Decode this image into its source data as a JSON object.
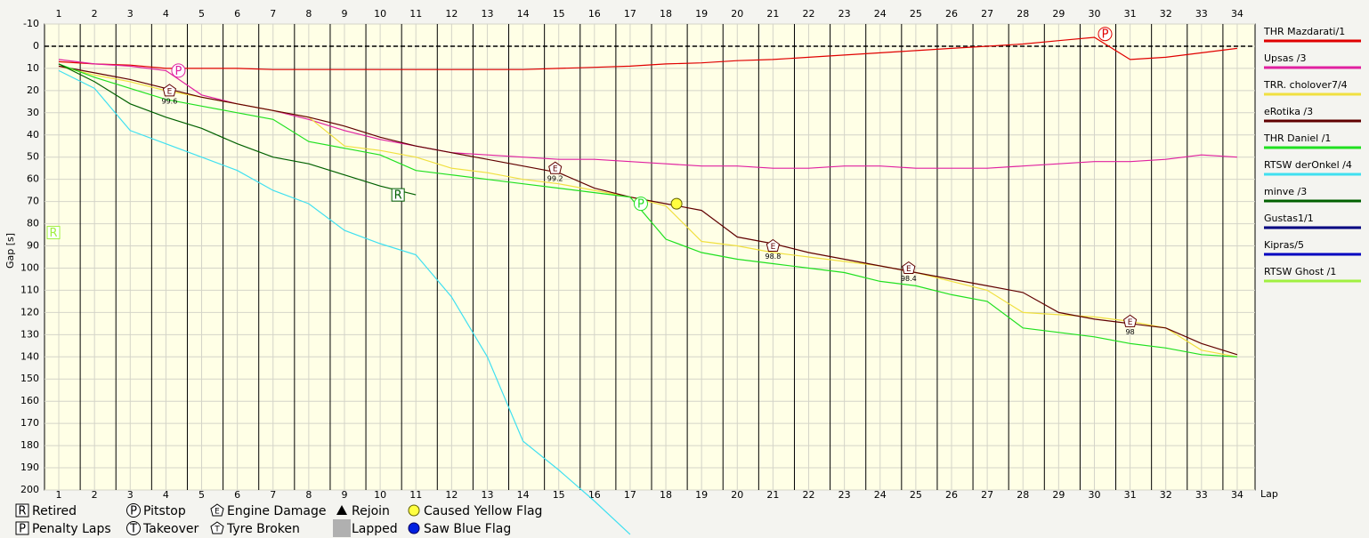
{
  "chart_data": {
    "type": "line",
    "y_axis_label": "Gap [s]",
    "x_axis_label": "Lap",
    "x": [
      1,
      2,
      3,
      4,
      5,
      6,
      7,
      8,
      9,
      10,
      11,
      12,
      13,
      14,
      15,
      16,
      17,
      18,
      19,
      20,
      21,
      22,
      23,
      24,
      25,
      26,
      27,
      28,
      29,
      30,
      31,
      32,
      33,
      34
    ],
    "xlim": [
      0.6,
      34.5
    ],
    "xticks": [
      1,
      2,
      3,
      4,
      5,
      6,
      7,
      8,
      9,
      10,
      11,
      12,
      13,
      14,
      15,
      16,
      17,
      18,
      19,
      20,
      21,
      22,
      23,
      24,
      25,
      26,
      27,
      28,
      29,
      30,
      31,
      32,
      33,
      34
    ],
    "ylim": [
      -10,
      200
    ],
    "y_inverted": true,
    "yticks": [
      -10,
      0,
      10,
      20,
      30,
      40,
      50,
      60,
      70,
      80,
      90,
      100,
      110,
      120,
      130,
      140,
      150,
      160,
      170,
      180,
      190,
      200
    ],
    "grid": true,
    "zero_line": true,
    "series": [
      {
        "name": "THR Mazdarati/1",
        "color": "#e00000",
        "values": [
          7,
          8,
          8.5,
          10,
          10,
          10,
          10.5,
          10.5,
          10.5,
          10.5,
          10.5,
          10.5,
          10.5,
          10.5,
          10,
          9.5,
          9,
          8,
          7.5,
          6.5,
          6,
          5,
          4,
          3,
          2,
          1,
          0,
          -1,
          -2.5,
          -4,
          6,
          5,
          3,
          1
        ]
      },
      {
        "name": "Upsas /3",
        "color": "#e020a0",
        "values": [
          6,
          8,
          9,
          11,
          22,
          26,
          29,
          33,
          38,
          42,
          45,
          48,
          49,
          50,
          51,
          51,
          52,
          53,
          54,
          54,
          55,
          55,
          54,
          54,
          55,
          55,
          55,
          54,
          53,
          52,
          52,
          51,
          49,
          50
        ]
      },
      {
        "name": "TRR. cholover7/4",
        "color": "#f0e040",
        "values": [
          9,
          13,
          16,
          20,
          23,
          26,
          29,
          32,
          45,
          47,
          50,
          55,
          57,
          60,
          62,
          65,
          68,
          72,
          88,
          90,
          93,
          95,
          97,
          99,
          102,
          106,
          110,
          120,
          121,
          122,
          124,
          127,
          137,
          140
        ]
      },
      {
        "name": "eRotika /3",
        "color": "#600000",
        "values": [
          9,
          12,
          15,
          19,
          23,
          26,
          29,
          32,
          36,
          41,
          45,
          48,
          51,
          54,
          57,
          64,
          68,
          71,
          74,
          86,
          89,
          93,
          96,
          99,
          102,
          105,
          108,
          111,
          120,
          123,
          125,
          127,
          134,
          139
        ]
      },
      {
        "name": "THR Daniel /1",
        "color": "#20e020",
        "values": [
          8,
          14,
          19,
          24,
          27,
          30,
          33,
          43,
          46,
          49,
          56,
          58,
          60,
          62,
          64,
          66,
          68,
          87,
          93,
          96,
          98,
          100,
          102,
          106,
          108,
          112,
          115,
          127,
          129,
          131,
          134,
          136,
          139,
          140
        ]
      },
      {
        "name": "RTSW derOnkel /4",
        "color": "#40e0f0",
        "values": [
          11,
          19,
          38,
          44,
          50,
          56,
          65,
          71,
          83,
          89,
          94,
          113,
          140,
          178,
          191,
          205,
          220,
          null,
          null,
          null,
          null,
          null,
          null,
          null,
          null,
          null,
          null,
          null,
          null,
          null,
          null,
          null,
          null,
          null
        ]
      },
      {
        "name": "minve /3",
        "color": "#006000",
        "values": [
          8,
          16,
          26,
          32,
          37,
          44,
          50,
          53,
          58,
          63,
          67,
          null,
          null,
          null,
          null,
          null,
          null,
          null,
          null,
          null,
          null,
          null,
          null,
          null,
          null,
          null,
          null,
          null,
          null,
          null,
          null,
          null,
          null,
          null
        ]
      },
      {
        "name": "Gustas1/1",
        "color": "#000080",
        "values": [
          null,
          null,
          null,
          null,
          null,
          null,
          null,
          null,
          null,
          null,
          null,
          null,
          null,
          null,
          null,
          null,
          null,
          null,
          null,
          null,
          null,
          null,
          null,
          null,
          null,
          null,
          null,
          null,
          null,
          null,
          null,
          null,
          null,
          null
        ]
      },
      {
        "name": "Kipras/5",
        "color": "#0000c0",
        "values": [
          null,
          null,
          null,
          null,
          null,
          null,
          null,
          null,
          null,
          null,
          null,
          null,
          null,
          null,
          null,
          null,
          null,
          null,
          null,
          null,
          null,
          null,
          null,
          null,
          null,
          null,
          null,
          null,
          null,
          null,
          null,
          null,
          null,
          null
        ]
      },
      {
        "name": "RTSW Ghost /1",
        "color": "#a0f040",
        "values": [
          null,
          null,
          null,
          null,
          null,
          null,
          null,
          null,
          null,
          null,
          null,
          null,
          null,
          null,
          null,
          null,
          null,
          null,
          null,
          null,
          null,
          null,
          null,
          null,
          null,
          null,
          null,
          null,
          null,
          null,
          null,
          null,
          null,
          null
        ]
      }
    ],
    "events": [
      {
        "symbol": "R",
        "kind": "box",
        "color": "#a0f040",
        "lap": 0.85,
        "gap": 84
      },
      {
        "symbol": "R",
        "kind": "box",
        "color": "#006000",
        "lap": 10.5,
        "gap": 67
      },
      {
        "symbol": "P",
        "kind": "circle",
        "color": "#e00000",
        "lap": 30.3,
        "gap": -5.5
      },
      {
        "symbol": "P",
        "kind": "circle",
        "color": "#e020a0",
        "lap": 4.35,
        "gap": 11
      },
      {
        "symbol": "P",
        "kind": "circle",
        "color": "#20e020",
        "lap": 17.3,
        "gap": 71
      },
      {
        "symbol": "E",
        "kind": "pentagon",
        "color": "#600000",
        "lap": 4.1,
        "gap": 20,
        "label": "99.6"
      },
      {
        "symbol": "E",
        "kind": "pentagon",
        "color": "#600000",
        "lap": 14.9,
        "gap": 55,
        "label": "99.2"
      },
      {
        "symbol": "E",
        "kind": "pentagon",
        "color": "#600000",
        "lap": 21,
        "gap": 90,
        "label": "98.8"
      },
      {
        "symbol": "E",
        "kind": "pentagon",
        "color": "#600000",
        "lap": 24.8,
        "gap": 100,
        "label": "98.4"
      },
      {
        "symbol": "E",
        "kind": "pentagon",
        "color": "#600000",
        "lap": 31,
        "gap": 124,
        "label": "98"
      },
      {
        "kind": "yellow",
        "color": "#f0e040",
        "lap": 18.3,
        "gap": 71
      }
    ],
    "event_legend": [
      {
        "symbol": "R",
        "kind": "box",
        "label": "Retired"
      },
      {
        "symbol": "P",
        "kind": "box",
        "label": "Penalty Laps"
      },
      {
        "symbol": "P",
        "kind": "circle",
        "label": "Pitstop"
      },
      {
        "symbol": "T",
        "kind": "circle",
        "label": "Takeover"
      },
      {
        "symbol": "E",
        "kind": "pentagon",
        "label": "Engine Damage"
      },
      {
        "symbol": "T",
        "kind": "pentagon",
        "label": "Tyre Broken"
      },
      {
        "kind": "triangle",
        "label": "Rejoin"
      },
      {
        "kind": "lapped",
        "label": "Lapped"
      },
      {
        "kind": "yellow",
        "label": "Caused Yellow Flag"
      },
      {
        "kind": "blue",
        "label": "Saw Blue Flag"
      }
    ]
  }
}
